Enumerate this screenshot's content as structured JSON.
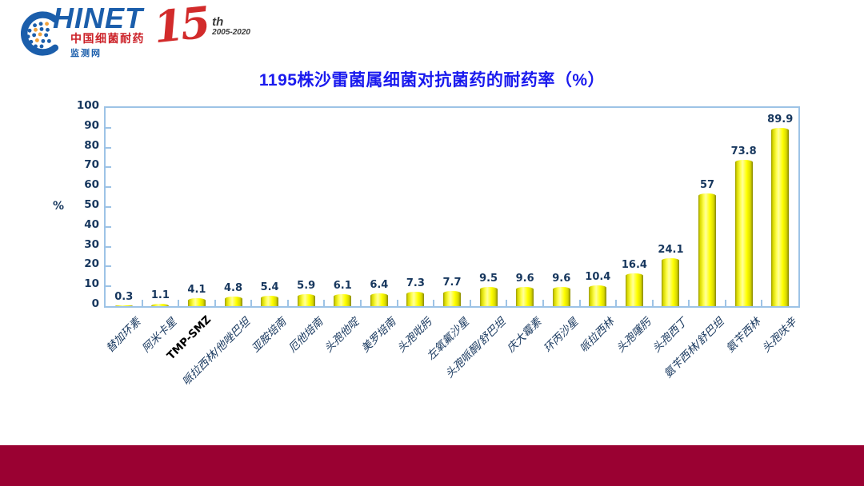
{
  "logo": {
    "brand": "HINET",
    "subtitle_cn": "中国细菌耐药",
    "subtitle_net": "监测网",
    "anniversary": {
      "number": "15",
      "suffix": "th",
      "years": "2005-2020"
    }
  },
  "title": "1195株沙雷菌属细菌对抗菌药的耐药率（%）",
  "chart_data": {
    "type": "bar",
    "title": "1195株沙雷菌属细菌对抗菌药的耐药率（%）",
    "xlabel": "",
    "ylabel": "%",
    "ylim": [
      0,
      100
    ],
    "ytick_interval": 10,
    "yticks": [
      0,
      10,
      20,
      30,
      40,
      50,
      60,
      70,
      80,
      90,
      100
    ],
    "grid": false,
    "legend": false,
    "categories": [
      "替加环素",
      "阿米卡星",
      "TMP-SMZ",
      "哌拉西林/他唑巴坦",
      "亚胺培南",
      "厄他培南",
      "头孢他啶",
      "美罗培南",
      "头孢吡肟",
      "左氧氟沙星",
      "头孢哌酮/舒巴坦",
      "庆大霉素",
      "环丙沙星",
      "哌拉西林",
      "头孢噻肟",
      "头孢西丁",
      "氨苄西林/舒巴坦",
      "氨苄西林",
      "头孢呋辛"
    ],
    "values": [
      0.3,
      1.1,
      4.1,
      4.8,
      5.4,
      5.9,
      6.1,
      6.4,
      7.3,
      7.7,
      9.5,
      9.6,
      9.6,
      10.4,
      16.4,
      24.1,
      57,
      73.8,
      89.9
    ],
    "value_labels": [
      "0.3",
      "1.1",
      "4.1",
      "4.8",
      "5.4",
      "5.9",
      "6.1",
      "6.4",
      "7.3",
      "7.7",
      "9.5",
      "9.6",
      "9.6",
      "10.4",
      "16.4",
      "24.1",
      "57",
      "73.8",
      "89.9"
    ],
    "highlight_category": "TMP-SMZ",
    "bar_color": "#FFFF00",
    "bar_edge_color": "#878700",
    "axis_color": "#9DC3E6",
    "text_color": "#17375E",
    "highlight_text_color": "#000000"
  },
  "colors": {
    "title": "#1A1AEE",
    "footer_bar": "#9A0132",
    "logo_blue": "#1B5EAB",
    "logo_red": "#CC2229",
    "logo_orange": "#F2A33C",
    "anniversary_red": "#D22B2B"
  }
}
